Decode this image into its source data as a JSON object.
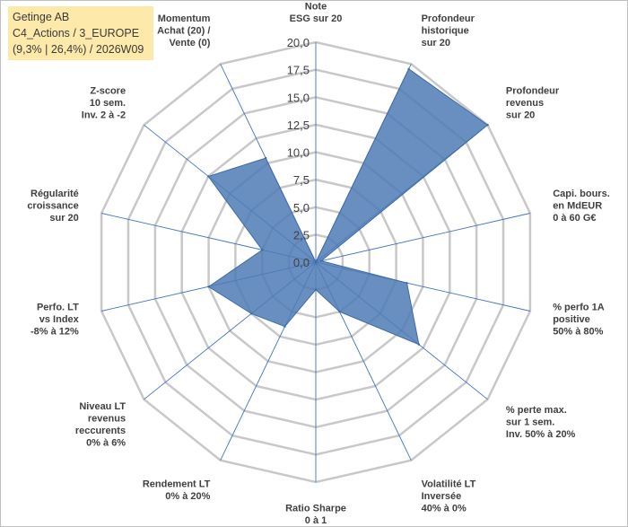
{
  "title_box": {
    "line1": "Getinge AB",
    "line2": "C4_Actions / 3_EUROPE",
    "line3": "(9,3% | 26,4%) / 2026W09"
  },
  "colors": {
    "fill": "#4f7bb5",
    "stroke": "#3f6aa6",
    "grid": "#c8c8c8",
    "spoke": "#4472c4",
    "title_bg": "#fde9a9"
  },
  "chart_data": {
    "type": "radar",
    "rmax": 20,
    "ticks": [
      "0,0",
      "2,5",
      "5,0",
      "7,5",
      "10,0",
      "12,5",
      "15,0",
      "17,5",
      "20,0"
    ],
    "tick_values": [
      0,
      2.5,
      5,
      7.5,
      10,
      12.5,
      15,
      17.5,
      20
    ],
    "axes": [
      {
        "lines": [
          "Note",
          "ESG sur 20"
        ],
        "value": 0
      },
      {
        "lines": [
          "Profondeur",
          "historique",
          "sur 20"
        ],
        "value": 19.5
      },
      {
        "lines": [
          "Profondeur",
          "revenus",
          "sur 20"
        ],
        "value": 20
      },
      {
        "lines": [
          "Capi. bours.",
          "en MdEUR",
          "0 à 60 G€"
        ],
        "value": 0.5
      },
      {
        "lines": [
          "% perfo 1A",
          "positive",
          "50% à 80%"
        ],
        "value": 8.5
      },
      {
        "lines": [
          "% perte max.",
          "sur 1 sem.",
          "Inv. 50% à 20%"
        ],
        "value": 12
      },
      {
        "lines": [
          "Volatilité LT",
          "Inversée",
          "40% à 0%"
        ],
        "value": 5
      },
      {
        "lines": [
          "Ratio Sharpe",
          "0 à 1"
        ],
        "value": 2.5
      },
      {
        "lines": [
          "Rendement LT",
          "0% à 20%"
        ],
        "value": 6.5
      },
      {
        "lines": [
          "Niveau LT",
          "revenus",
          "reccurents",
          "0% à 6%"
        ],
        "value": 7.5
      },
      {
        "lines": [
          "Perfo. LT",
          "vs Index",
          "-8% à 12%"
        ],
        "value": 10
      },
      {
        "lines": [
          "Régularité",
          "croissance",
          "sur 20"
        ],
        "value": 5
      },
      {
        "lines": [
          "Z-score",
          "10 sem.",
          "Inv. 2 à -2"
        ],
        "value": 12.5
      },
      {
        "lines": [
          "Momentum",
          "Achat (20) /",
          "Vente (0)"
        ],
        "value": 10.5
      }
    ]
  }
}
